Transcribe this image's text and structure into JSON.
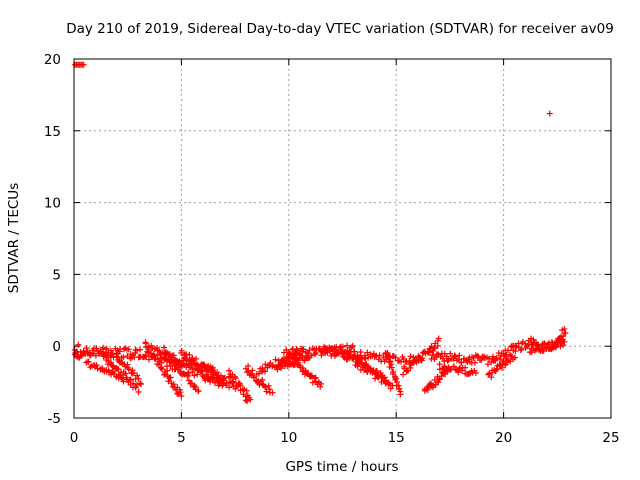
{
  "chart_data": {
    "type": "scatter",
    "title": "Day 210 of 2019, Sidereal Day-to-day VTEC variation (SDTVAR) for receiver av09",
    "xlabel": "GPS time / hours",
    "ylabel": "SDTVAR / TECUs",
    "xlim": [
      0,
      25
    ],
    "ylim": [
      -5,
      20
    ],
    "xticks": [
      0,
      5,
      10,
      15,
      20,
      25
    ],
    "yticks": [
      -5,
      0,
      5,
      10,
      15,
      20
    ],
    "grid": true,
    "marker": "+",
    "color": "#ff0000",
    "series": [
      {
        "name": "SDTVAR",
        "segments": [
          {
            "x": [
              0.0,
              0.5
            ],
            "y": [
              -0.5,
              -0.6
            ],
            "n": 14,
            "noise": 0.25
          },
          {
            "x": [
              0.5,
              3.5
            ],
            "y": [
              -0.3,
              -0.6
            ],
            "n": 60,
            "noise": 0.35
          },
          {
            "x": [
              0.6,
              2.3
            ],
            "y": [
              -1.2,
              -2.3
            ],
            "n": 30,
            "noise": 0.2
          },
          {
            "x": [
              1.2,
              3.0
            ],
            "y": [
              -0.5,
              -3.0
            ],
            "n": 35,
            "noise": 0.25
          },
          {
            "x": [
              2.0,
              3.1
            ],
            "y": [
              -0.7,
              -2.5
            ],
            "n": 20,
            "noise": 0.2
          },
          {
            "x": [
              3.3,
              5.0
            ],
            "y": [
              0.2,
              -3.5
            ],
            "n": 40,
            "noise": 0.3
          },
          {
            "x": [
              3.5,
              6.5
            ],
            "y": [
              -0.2,
              -1.8
            ],
            "n": 55,
            "noise": 0.3
          },
          {
            "x": [
              4.0,
              7.0
            ],
            "y": [
              -1.0,
              -2.5
            ],
            "n": 50,
            "noise": 0.3
          },
          {
            "x": [
              4.2,
              5.8
            ],
            "y": [
              -0.3,
              -3.2
            ],
            "n": 30,
            "noise": 0.25
          },
          {
            "x": [
              5.0,
              7.0
            ],
            "y": [
              -0.5,
              -2.2
            ],
            "n": 40,
            "noise": 0.25
          },
          {
            "x": [
              6.0,
              7.5
            ],
            "y": [
              -2.2,
              -2.8
            ],
            "n": 25,
            "noise": 0.25
          },
          {
            "x": [
              7.2,
              8.2
            ],
            "y": [
              -1.8,
              -3.8
            ],
            "n": 25,
            "noise": 0.3
          },
          {
            "x": [
              8.0,
              9.2
            ],
            "y": [
              -1.5,
              -3.2
            ],
            "n": 25,
            "noise": 0.3
          },
          {
            "x": [
              8.6,
              10.5
            ],
            "y": [
              -1.8,
              -0.4
            ],
            "n": 35,
            "noise": 0.3
          },
          {
            "x": [
              9.8,
              13.0
            ],
            "y": [
              -0.5,
              -0.2
            ],
            "n": 60,
            "noise": 0.3
          },
          {
            "x": [
              9.5,
              11.0
            ],
            "y": [
              -1.5,
              -0.6
            ],
            "n": 30,
            "noise": 0.25
          },
          {
            "x": [
              10.2,
              11.5
            ],
            "y": [
              -1.0,
              -2.8
            ],
            "n": 30,
            "noise": 0.25
          },
          {
            "x": [
              11.5,
              14.0
            ],
            "y": [
              -0.3,
              -0.8
            ],
            "n": 45,
            "noise": 0.3
          },
          {
            "x": [
              12.5,
              14.8
            ],
            "y": [
              -0.5,
              -2.8
            ],
            "n": 45,
            "noise": 0.3
          },
          {
            "x": [
              13.0,
              14.5
            ],
            "y": [
              -0.6,
              -2.3
            ],
            "n": 30,
            "noise": 0.25
          },
          {
            "x": [
              14.5,
              15.2
            ],
            "y": [
              -0.3,
              -3.3
            ],
            "n": 25,
            "noise": 0.2
          },
          {
            "x": [
              14.0,
              16.2
            ],
            "y": [
              -0.8,
              -1.0
            ],
            "n": 30,
            "noise": 0.25
          },
          {
            "x": [
              15.3,
              17.0
            ],
            "y": [
              -1.8,
              0.3
            ],
            "n": 35,
            "noise": 0.25
          },
          {
            "x": [
              16.3,
              17.5
            ],
            "y": [
              -3.2,
              -1.6
            ],
            "n": 30,
            "noise": 0.25
          },
          {
            "x": [
              16.5,
              19.5
            ],
            "y": [
              -0.7,
              -1.0
            ],
            "n": 55,
            "noise": 0.3
          },
          {
            "x": [
              17.0,
              18.7
            ],
            "y": [
              -1.5,
              -1.8
            ],
            "n": 30,
            "noise": 0.25
          },
          {
            "x": [
              19.3,
              20.5
            ],
            "y": [
              -2.2,
              -0.6
            ],
            "n": 25,
            "noise": 0.25
          },
          {
            "x": [
              19.5,
              21.5
            ],
            "y": [
              -0.8,
              0.4
            ],
            "n": 40,
            "noise": 0.3
          },
          {
            "x": [
              21.2,
              22.8
            ],
            "y": [
              -0.2,
              0.2
            ],
            "n": 50,
            "noise": 0.3
          },
          {
            "x": [
              22.3,
              22.9
            ],
            "y": [
              0.0,
              1.2
            ],
            "n": 15,
            "noise": 0.3
          }
        ],
        "outliers": [
          {
            "x": 0.05,
            "y": 19.6
          },
          {
            "x": 0.12,
            "y": 19.6
          },
          {
            "x": 0.18,
            "y": 19.6
          },
          {
            "x": 0.25,
            "y": 19.6
          },
          {
            "x": 0.32,
            "y": 19.6
          },
          {
            "x": 0.38,
            "y": 19.6
          },
          {
            "x": 0.45,
            "y": 19.6
          },
          {
            "x": 22.15,
            "y": 16.2
          },
          {
            "x": 0.15,
            "y": -0.4
          },
          {
            "x": 0.25,
            "y": -0.8
          },
          {
            "x": 0.2,
            "y": 0.1
          }
        ]
      }
    ]
  }
}
